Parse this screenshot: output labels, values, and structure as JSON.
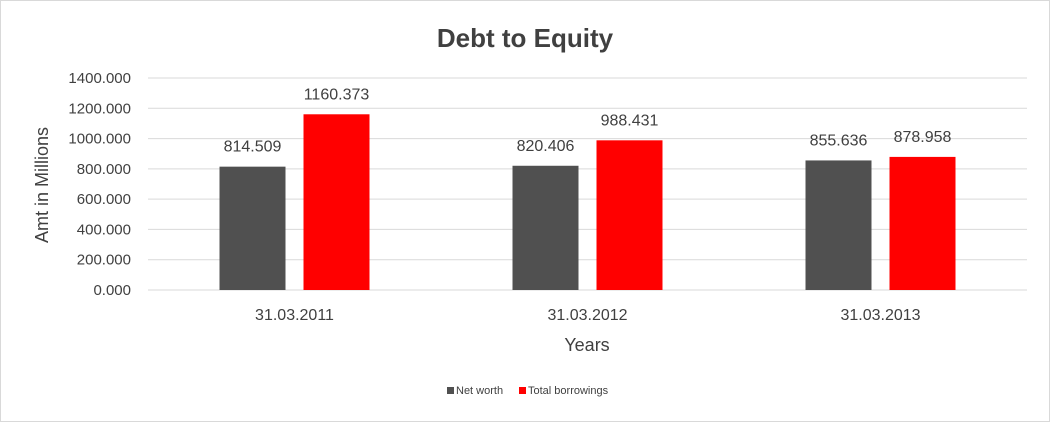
{
  "chart_data": {
    "type": "bar",
    "title": "Debt to Equity",
    "xlabel": "Years",
    "ylabel": "Amt in Millions",
    "categories": [
      "31.03.2011",
      "31.03.2012",
      "31.03.2013"
    ],
    "series": [
      {
        "name": "Net worth",
        "color": "#505050",
        "values": [
          814.509,
          820.406,
          855.636
        ],
        "labels": [
          "814.509",
          "820.406",
          "855.636"
        ]
      },
      {
        "name": "Total borrowings",
        "color": "#ff0000",
        "values": [
          1160.373,
          988.431,
          878.958
        ],
        "labels": [
          "1160.373",
          "988.431",
          "878.958"
        ]
      }
    ],
    "ylim": [
      0,
      1400
    ],
    "yticks": [
      0,
      200,
      400,
      600,
      800,
      1000,
      1200,
      1400
    ],
    "ytick_labels": [
      "0.000",
      "200.000",
      "400.000",
      "600.000",
      "800.000",
      "1000.000",
      "1200.000",
      "1400.000"
    ],
    "grid": true,
    "legend_position": "bottom",
    "gridline_color": "#d9d9d9"
  }
}
